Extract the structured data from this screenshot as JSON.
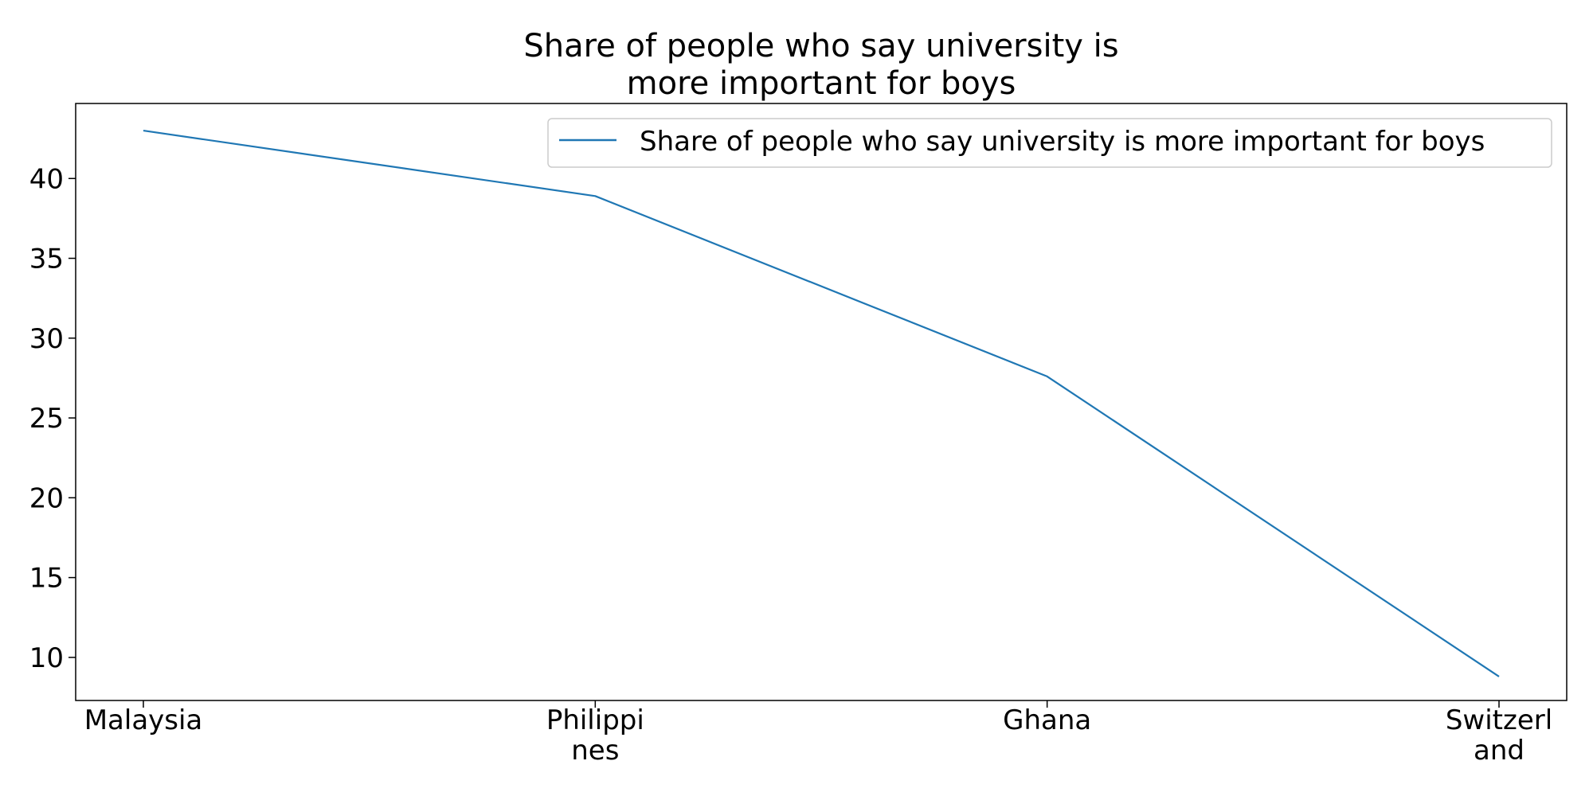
{
  "chart_data": {
    "type": "line",
    "title_lines": [
      "Share of people who say university is",
      "more important for boys"
    ],
    "categories": [
      "Malaysia",
      "Philippines",
      "Ghana",
      "Switzerland"
    ],
    "category_tick_lines": [
      [
        "Malaysia"
      ],
      [
        "Philippi",
        "nes"
      ],
      [
        "Ghana"
      ],
      [
        "Switzerl",
        "and"
      ]
    ],
    "series": [
      {
        "name": "Share of people who say university is more important for boys",
        "values": [
          43.0,
          38.9,
          27.6,
          8.8
        ],
        "color": "#1f77b4"
      }
    ],
    "yticks": [
      10,
      15,
      20,
      25,
      30,
      35,
      40
    ],
    "ylim": [
      7.3,
      44.7
    ],
    "legend_position": "top-right",
    "grid": false
  }
}
